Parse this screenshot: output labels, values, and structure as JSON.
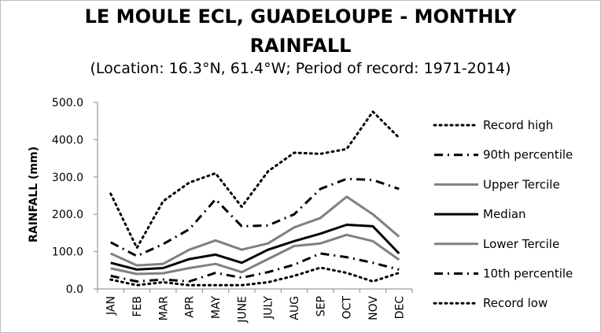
{
  "chart_data": {
    "type": "line",
    "title_line1": "LE MOULE ECL, GUADELOUPE - MONTHLY",
    "title_line2": "RAINFALL",
    "subtitle": "(Location: 16.3°N, 61.4°W; Period of record: 1971-2014)",
    "ylabel": "RAINFALL (mm)",
    "xlabel": "",
    "ylim": [
      0,
      500
    ],
    "yticks": [
      "0.0",
      "100.0",
      "200.0",
      "300.0",
      "400.0",
      "500.0"
    ],
    "grid": false,
    "legend_position": "right",
    "categories": [
      "JAN",
      "FEB",
      "MAR",
      "APR",
      "MAY",
      "JUNE",
      "JULY",
      "AUG",
      "SEP",
      "OCT",
      "NOV",
      "DEC"
    ],
    "series": [
      {
        "name": "Record high",
        "style": "dotted",
        "color": "#000000",
        "values": [
          255,
          110,
          235,
          285,
          310,
          220,
          315,
          365,
          362,
          375,
          475,
          405
        ]
      },
      {
        "name": "90th percentile",
        "style": "dashdot",
        "color": "#000000",
        "values": [
          125,
          88,
          120,
          160,
          240,
          168,
          170,
          200,
          268,
          295,
          292,
          268
        ]
      },
      {
        "name": "Upper Tercile",
        "style": "solid",
        "color": "#808080",
        "values": [
          95,
          63,
          67,
          105,
          130,
          105,
          122,
          165,
          190,
          247,
          200,
          140
        ]
      },
      {
        "name": "Median",
        "style": "solid",
        "color": "#000000",
        "values": [
          70,
          52,
          56,
          80,
          92,
          70,
          105,
          128,
          148,
          172,
          168,
          95
        ]
      },
      {
        "name": "Lower Tercile",
        "style": "solid",
        "color": "#808080",
        "values": [
          55,
          40,
          42,
          56,
          67,
          45,
          80,
          115,
          122,
          145,
          128,
          78
        ]
      },
      {
        "name": "10th percentile",
        "style": "dashdot",
        "color": "#000000",
        "values": [
          35,
          20,
          25,
          20,
          43,
          30,
          45,
          65,
          95,
          85,
          70,
          52
        ]
      },
      {
        "name": "Record low",
        "style": "dotted",
        "color": "#000000",
        "values": [
          25,
          10,
          18,
          10,
          10,
          10,
          18,
          35,
          57,
          43,
          20,
          43
        ]
      }
    ]
  }
}
